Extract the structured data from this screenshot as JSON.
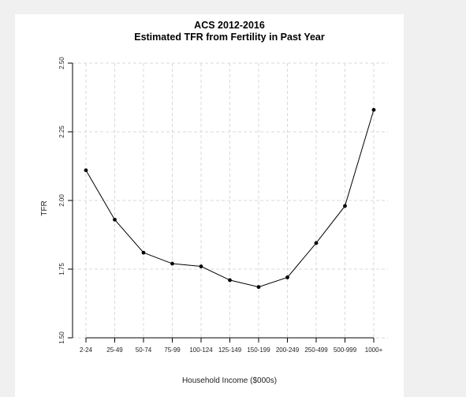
{
  "chart_data": {
    "type": "line",
    "title": "ACS 2012-2016",
    "subtitle": "Estimated TFR from Fertility in Past Year",
    "xlabel": "Household Income ($000s)",
    "ylabel": "TFR",
    "categories": [
      "2-24",
      "25-49",
      "50-74",
      "75-99",
      "100-124",
      "125-149",
      "150-199",
      "200-249",
      "250-499",
      "500-999",
      "1000+"
    ],
    "values": [
      2.11,
      1.93,
      1.81,
      1.77,
      1.76,
      1.71,
      1.685,
      1.72,
      1.845,
      1.98,
      2.33
    ],
    "ylim": [
      1.5,
      2.5
    ],
    "yticks": [
      1.5,
      1.75,
      2.0,
      2.25,
      2.5
    ],
    "ytick_labels": [
      "1.50",
      "1.75",
      "2.00",
      "2.25",
      "2.50"
    ],
    "grid": true,
    "grid_color": "#d9d9d9",
    "line_color": "#000000",
    "marker_color": "#000000"
  }
}
